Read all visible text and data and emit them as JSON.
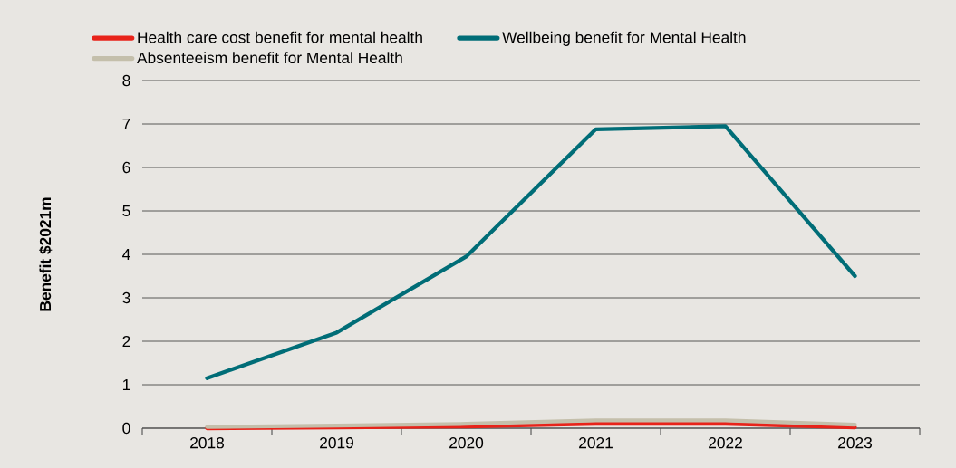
{
  "chart_data": {
    "type": "line",
    "ylabel": "Benefit $2021m",
    "categories": [
      "2018",
      "2019",
      "2020",
      "2021",
      "2022",
      "2023"
    ],
    "series": [
      {
        "name": "Health care cost benefit for mental health",
        "color": "#e8231a",
        "values": [
          0,
          0.02,
          0.04,
          0.1,
          0.1,
          0.02
        ]
      },
      {
        "name": "Wellbeing benefit for Mental Health",
        "color": "#006d77",
        "values": [
          1.15,
          2.2,
          3.95,
          6.88,
          6.95,
          3.5
        ]
      },
      {
        "name": "Absenteeism benefit for Mental Health",
        "color": "#c4bfab",
        "values": [
          0.03,
          0.06,
          0.1,
          0.18,
          0.18,
          0.08
        ]
      }
    ],
    "ylim": [
      0,
      8
    ],
    "yticks": [
      0,
      1,
      2,
      3,
      4,
      5,
      6,
      7,
      8
    ],
    "grid": "y",
    "legend": "top left",
    "marker": "none",
    "line_style": "solid"
  }
}
